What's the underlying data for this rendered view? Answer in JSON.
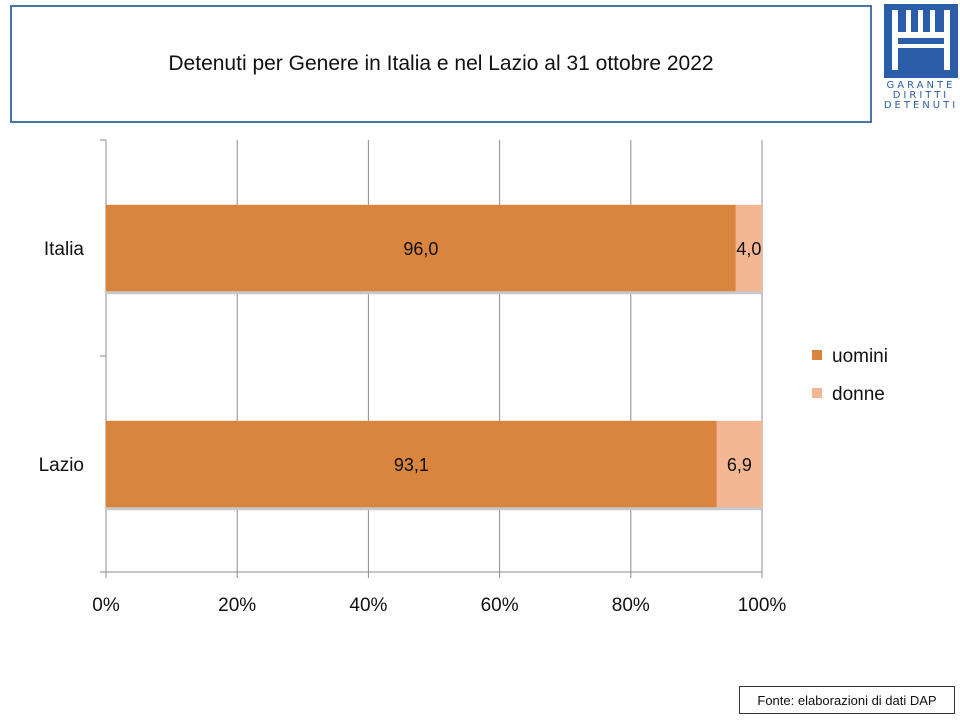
{
  "header": {
    "title": "Detenuti per Genere in Italia e nel Lazio al 31 ottobre 2022"
  },
  "logo": {
    "lines": [
      "GARANTE",
      "DIRITTI",
      "DETENUTI"
    ],
    "color": "#2b5ea8"
  },
  "source": {
    "text": "Fonte: elaborazioni di dati DAP"
  },
  "chart_data": {
    "type": "bar",
    "orientation": "horizontal",
    "stacked": true,
    "percent_stacked": true,
    "categories": [
      "Italia",
      "Lazio"
    ],
    "series": [
      {
        "name": "uomini",
        "values": [
          96.0,
          93.1
        ],
        "labels": [
          "96,0",
          "93,1"
        ],
        "color": "#d9843f"
      },
      {
        "name": "donne",
        "values": [
          4.0,
          6.9
        ],
        "labels": [
          "4,0",
          "6,9"
        ],
        "color": "#f5b793"
      }
    ],
    "x_ticks": [
      "0%",
      "20%",
      "40%",
      "60%",
      "80%",
      "100%"
    ],
    "xlim": [
      0,
      100
    ],
    "grid": true,
    "legend": "right"
  }
}
